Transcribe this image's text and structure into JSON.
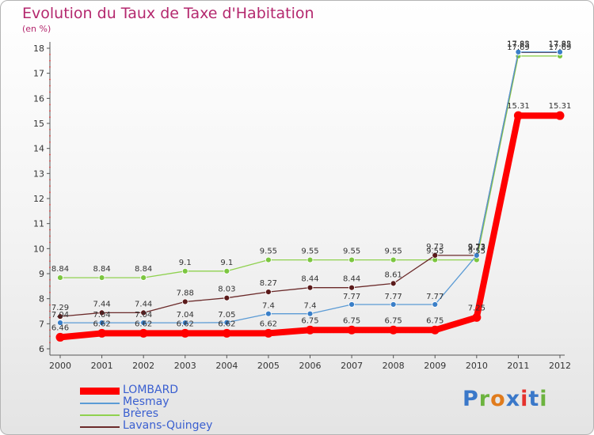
{
  "chart_data": {
    "type": "line",
    "title": "Evolution du Taux de Taxe d'Habitation",
    "subtitle": "(en %)",
    "x": [
      2000,
      2001,
      2002,
      2003,
      2004,
      2005,
      2006,
      2007,
      2008,
      2009,
      2010,
      2011,
      2012
    ],
    "x_tick_labels": [
      "2000",
      "2001",
      "2002",
      "2003",
      "2004",
      "2005",
      "2006",
      "2007",
      "2008",
      "2009",
      "2010",
      "2011",
      "2012"
    ],
    "ylim": [
      6,
      18
    ],
    "y_ticks": [
      6,
      7,
      8,
      9,
      10,
      11,
      12,
      13,
      14,
      15,
      16,
      17,
      18
    ],
    "y_tick_labels": [
      "6",
      "7",
      "8",
      "9",
      "10",
      "11",
      "12",
      "13",
      "14",
      "15",
      "16",
      "17",
      "18"
    ],
    "grid": false,
    "legend_position": "bottom-left",
    "series": [
      {
        "name": "LOMBARD",
        "color": "#ff0000",
        "values": [
          6.46,
          6.62,
          6.62,
          6.62,
          6.62,
          6.62,
          6.75,
          6.75,
          6.75,
          6.75,
          7.25,
          15.31,
          15.31
        ],
        "labels": [
          "6.46",
          "6.62",
          "6.62",
          "6.62",
          "6.62",
          "6.62",
          "6.75",
          "6.75",
          "6.75",
          "6.75",
          "7.25",
          "15.31",
          "15.31"
        ]
      },
      {
        "name": "Mesmay",
        "color": "#5b9bd5",
        "values": [
          7.04,
          7.04,
          7.04,
          7.04,
          7.05,
          7.4,
          7.4,
          7.77,
          7.77,
          7.77,
          9.73,
          17.85,
          17.85
        ],
        "labels": [
          "7.04",
          "7.04",
          "7.04",
          "7.04",
          "7.05",
          "7.4",
          "7.4",
          "7.77",
          "7.77",
          "7.77",
          "9.73",
          "17.85",
          "17.85"
        ]
      },
      {
        "name": "Brères",
        "color": "#8fd14f",
        "values": [
          8.84,
          8.84,
          8.84,
          9.1,
          9.1,
          9.55,
          9.55,
          9.55,
          9.55,
          9.55,
          9.55,
          17.69,
          17.69
        ],
        "labels": [
          "8.84",
          "8.84",
          "8.84",
          "9.1",
          "9.1",
          "9.55",
          "9.55",
          "9.55",
          "9.55",
          "9.55",
          "9.55",
          "17.69",
          "17.69"
        ]
      },
      {
        "name": "Lavans-Quingey",
        "color": "#6b2a2a",
        "values": [
          7.29,
          7.44,
          7.44,
          7.88,
          8.03,
          8.27,
          8.44,
          8.44,
          8.61,
          9.73,
          9.73,
          17.83,
          17.83
        ],
        "labels": [
          "7.29",
          "7.44",
          "7.44",
          "7.88",
          "8.03",
          "8.27",
          "8.44",
          "8.44",
          "8.61",
          "9.73",
          "9.73",
          "17.83",
          "17.83"
        ]
      }
    ]
  },
  "logo": {
    "text": "Proxiti",
    "letters": [
      "P",
      "r",
      "o",
      "x",
      "i",
      "t",
      "i"
    ],
    "colors": [
      "#3a78c9",
      "#6cb33f",
      "#e07b1c",
      "#3a78c9",
      "#e5322d",
      "#3a78c9",
      "#6cb33f"
    ]
  }
}
